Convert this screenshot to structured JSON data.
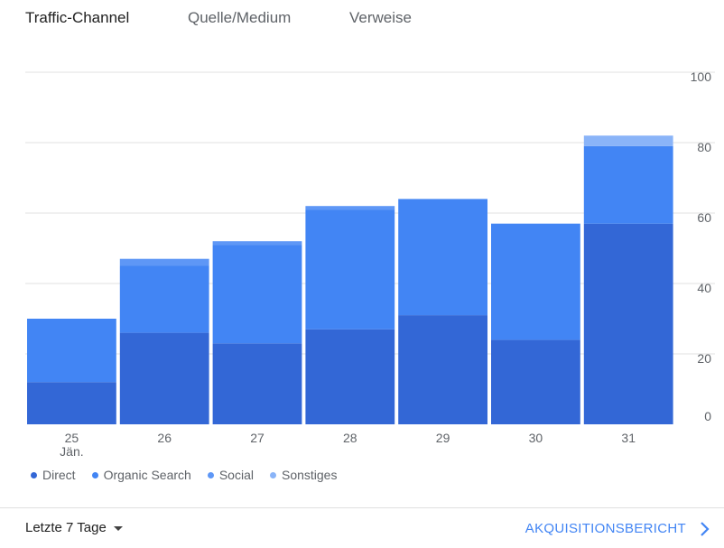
{
  "tabs": [
    {
      "label": "Traffic-Channel",
      "active": true
    },
    {
      "label": "Quelle/Medium",
      "active": false
    },
    {
      "label": "Verweise",
      "active": false
    }
  ],
  "chart_data": {
    "type": "bar",
    "stacked": true,
    "categories": [
      "25",
      "26",
      "27",
      "28",
      "29",
      "30",
      "31"
    ],
    "category_sublabels": [
      "Jän.",
      "",
      "",
      "",
      "",
      "",
      ""
    ],
    "series": [
      {
        "name": "Direct",
        "color": "#3367d6",
        "values": [
          12,
          26,
          23,
          27,
          31,
          24,
          57
        ]
      },
      {
        "name": "Organic Search",
        "color": "#4285f4",
        "values": [
          18,
          19,
          28,
          34,
          33,
          33,
          22
        ]
      },
      {
        "name": "Social",
        "color": "#5e97f6",
        "values": [
          0,
          2,
          1,
          1,
          0,
          0,
          0
        ]
      },
      {
        "name": "Sonstiges",
        "color": "#8ab4f8",
        "values": [
          0,
          0,
          0,
          0,
          0,
          0,
          3
        ]
      }
    ],
    "ylim": [
      0,
      100
    ],
    "yticks": [
      0,
      20,
      40,
      60,
      80,
      100
    ],
    "grid": true,
    "y_axis_side": "right",
    "legend_position": "bottom-left"
  },
  "footer": {
    "date_range": "Letzte 7 Tage",
    "report_link": "AKQUISITIONSBERICHT"
  },
  "icons": {
    "date_range_caret": "caret-down-icon",
    "report_chevron": "chevron-right-icon"
  }
}
